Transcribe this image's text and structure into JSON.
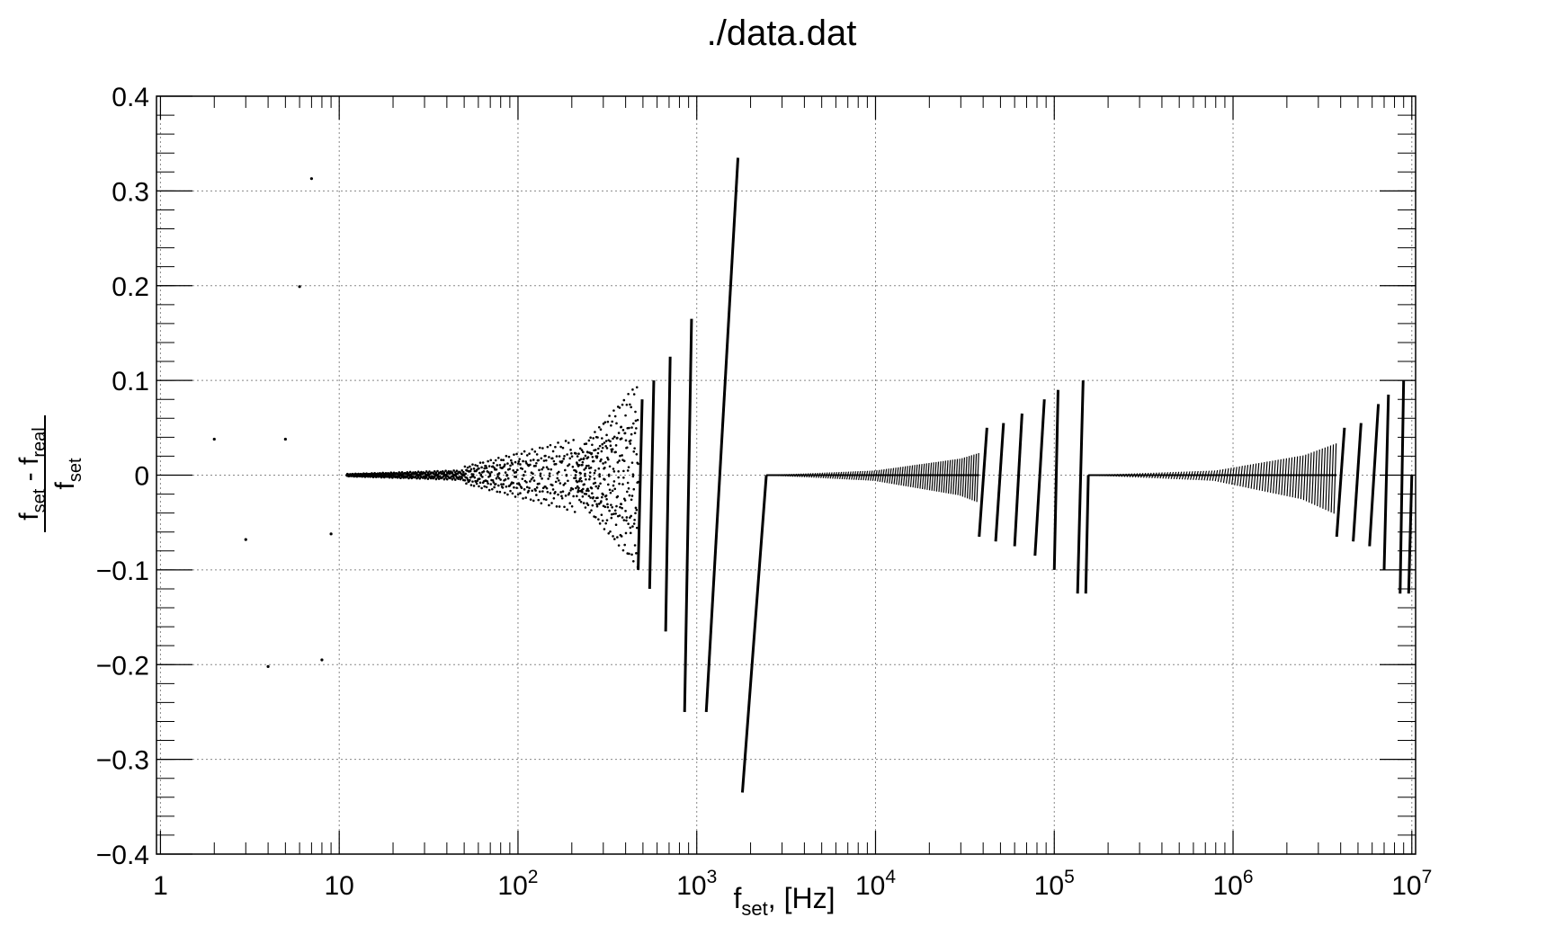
{
  "chart_data": {
    "type": "scatter",
    "title": "./data.dat",
    "xlabel": {
      "main": "f",
      "sub": "set",
      "tail": ", [Hz]"
    },
    "ylabel": {
      "numerator": {
        "f1": "f",
        "s1": "set",
        "minus": " - f",
        "s2": "real"
      },
      "denominator": {
        "f": "f",
        "s": "set"
      }
    },
    "x_scale": "log",
    "xlim": [
      0.95,
      10500000
    ],
    "ylim": [
      -0.4,
      0.4
    ],
    "grid": true,
    "x_ticks": [
      {
        "value": 1,
        "base": "1",
        "exp": ""
      },
      {
        "value": 10,
        "base": "10",
        "exp": ""
      },
      {
        "value": 100,
        "base": "10",
        "exp": "2"
      },
      {
        "value": 1000,
        "base": "10",
        "exp": "3"
      },
      {
        "value": 10000,
        "base": "10",
        "exp": "4"
      },
      {
        "value": 100000,
        "base": "10",
        "exp": "5"
      },
      {
        "value": 1000000,
        "base": "10",
        "exp": "6"
      },
      {
        "value": 10000000,
        "base": "10",
        "exp": "7"
      }
    ],
    "y_ticks": [
      {
        "value": 0.4,
        "label": "0.4"
      },
      {
        "value": 0.3,
        "label": "0.3"
      },
      {
        "value": 0.2,
        "label": "0.2"
      },
      {
        "value": 0.1,
        "label": "0.1"
      },
      {
        "value": 0,
        "label": "0"
      },
      {
        "value": -0.1,
        "label": "−0.1"
      },
      {
        "value": -0.2,
        "label": "−0.2"
      },
      {
        "value": -0.3,
        "label": "−0.3"
      },
      {
        "value": -0.4,
        "label": "−0.4"
      }
    ],
    "series": [
      {
        "style": "isolated-points",
        "points": [
          [
            2,
            0.038
          ],
          [
            3,
            -0.068
          ],
          [
            4,
            -0.202
          ],
          [
            5,
            0.038
          ],
          [
            6,
            0.199
          ],
          [
            7,
            0.313
          ],
          [
            8,
            -0.195
          ],
          [
            9,
            -0.062
          ]
        ]
      },
      {
        "style": "dense-points",
        "segments": [
          {
            "x0": 11,
            "x1": 50,
            "y0": 0.0,
            "y1": 0.0,
            "scatter": 0.004
          },
          {
            "x0": 50,
            "x1": 210,
            "y0": 0.0,
            "y1": 0.0,
            "scatter": 0.03
          },
          {
            "x0": 210,
            "x1": 470,
            "y0": 0.0,
            "y1": 0.0,
            "scatter": 0.075
          }
        ]
      },
      {
        "style": "sawtooth-lines",
        "teeth": [
          [
            470,
            -0.1,
            495,
            0.08
          ],
          [
            545,
            -0.12,
            575,
            0.1
          ],
          [
            670,
            -0.165,
            710,
            0.125
          ],
          [
            855,
            -0.25,
            935,
            0.165
          ],
          [
            1130,
            -0.25,
            1700,
            0.335
          ]
        ],
        "drop": [
          1800,
          -0.335,
          2450,
          0.0
        ]
      },
      {
        "style": "sawtooth-envelope",
        "x_start": 2450,
        "x_end": 155000,
        "envelope": [
          [
            2450,
            0.0
          ],
          [
            10000,
            0.007
          ],
          [
            30000,
            0.025
          ],
          [
            60000,
            0.05
          ],
          [
            100000,
            0.09
          ],
          [
            140000,
            0.1
          ]
        ],
        "teeth": [
          [
            38000,
            -0.065,
            42000,
            0.05
          ],
          [
            47000,
            -0.07,
            52000,
            0.055
          ],
          [
            60000,
            -0.075,
            66000,
            0.065
          ],
          [
            78000,
            -0.085,
            88000,
            0.08
          ],
          [
            100000,
            -0.1,
            105000,
            0.09
          ],
          [
            135000,
            -0.125,
            145000,
            0.1
          ]
        ],
        "drop": [
          150000,
          -0.125,
          155000,
          0.0
        ]
      },
      {
        "style": "sawtooth-envelope",
        "x_start": 155000,
        "x_end": 10000000,
        "envelope": [
          [
            155000,
            0.0
          ],
          [
            800000,
            0.007
          ],
          [
            2500000,
            0.03
          ],
          [
            5000000,
            0.06
          ],
          [
            8000000,
            0.1
          ]
        ],
        "teeth": [
          [
            3800000,
            -0.065,
            4200000,
            0.05
          ],
          [
            4700000,
            -0.07,
            5200000,
            0.055
          ],
          [
            5800000,
            -0.075,
            6500000,
            0.075
          ],
          [
            7000000,
            -0.1,
            7400000,
            0.085
          ],
          [
            8600000,
            -0.125,
            9000000,
            0.1
          ]
        ],
        "drop": [
          9600000,
          -0.125,
          10000000,
          0.0
        ]
      }
    ]
  }
}
